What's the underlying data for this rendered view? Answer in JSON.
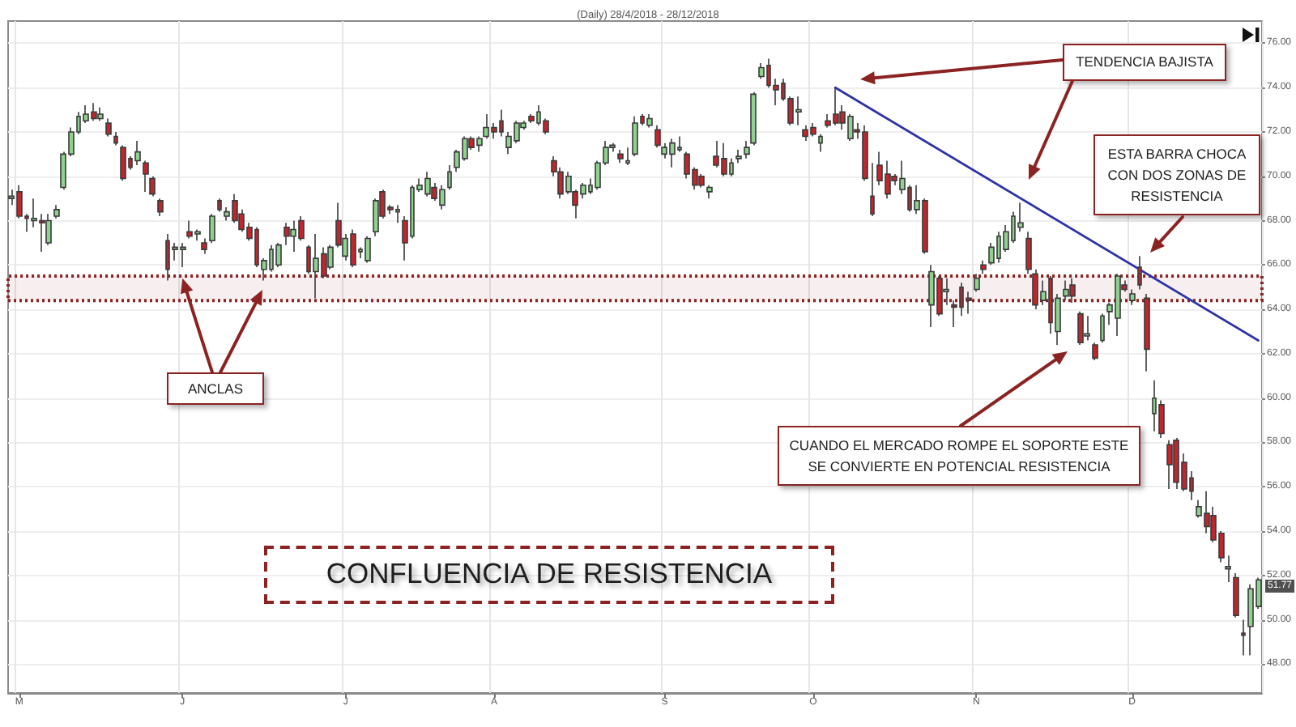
{
  "chart_data": {
    "type": "candlestick",
    "title": "(Daily) 28/4/2018 - 28/12/2018",
    "categories": [
      null,
      "M",
      null,
      null,
      null,
      null,
      null,
      null,
      null,
      null,
      null,
      null,
      null,
      null,
      null,
      null,
      null,
      null,
      null,
      null,
      null,
      null,
      null,
      "J",
      null,
      null,
      null,
      null,
      null,
      null,
      null,
      null,
      null,
      null,
      null,
      null,
      null,
      null,
      null,
      null,
      null,
      null,
      null,
      null,
      null,
      "J",
      null,
      null,
      null,
      null,
      null,
      null,
      null,
      null,
      null,
      null,
      null,
      null,
      null,
      null,
      null,
      null,
      null,
      null,
      null,
      "A",
      null,
      null,
      null,
      null,
      null,
      null,
      null,
      null,
      null,
      null,
      null,
      null,
      null,
      null,
      null,
      null,
      null,
      null,
      null,
      null,
      null,
      null,
      "S",
      null,
      null,
      null,
      null,
      null,
      null,
      null,
      null,
      null,
      null,
      null,
      null,
      null,
      null,
      null,
      null,
      null,
      null,
      null,
      "O",
      null,
      null,
      null,
      null,
      null,
      null,
      null,
      null,
      null,
      null,
      null,
      null,
      null,
      null,
      null,
      null,
      null,
      null,
      null,
      null,
      null,
      "N",
      null,
      null,
      null,
      null,
      null,
      null,
      null,
      null,
      null,
      null,
      null,
      null,
      null,
      null,
      null,
      null,
      null,
      null,
      null,
      null,
      "D",
      null,
      null,
      null,
      null,
      null,
      null,
      null,
      null,
      null,
      null,
      null,
      null,
      null,
      null,
      null,
      null,
      null
    ],
    "series": [
      {
        "type": "candlestick",
        "ohlc": [
          [
            69.0,
            69.4,
            68.7,
            69.1
          ],
          [
            69.3,
            69.6,
            68.1,
            68.2
          ],
          [
            68.2,
            68.3,
            67.5,
            68.1
          ],
          [
            68.0,
            69.0,
            67.7,
            68.1
          ],
          [
            68.0,
            68.3,
            66.6,
            67.9
          ],
          [
            67.0,
            68.3,
            66.9,
            68.0
          ],
          [
            68.2,
            68.7,
            68.1,
            68.5
          ],
          [
            69.5,
            71.1,
            69.4,
            71.0
          ],
          [
            71.0,
            72.2,
            70.9,
            72.0
          ],
          [
            72.0,
            72.9,
            71.9,
            72.7
          ],
          [
            72.5,
            73.2,
            72.4,
            72.8
          ],
          [
            72.9,
            73.3,
            72.5,
            72.6
          ],
          [
            72.6,
            73.1,
            72.5,
            72.8
          ],
          [
            72.4,
            72.6,
            71.8,
            71.9
          ],
          [
            71.8,
            72.0,
            71.4,
            71.5
          ],
          [
            71.3,
            71.4,
            69.8,
            69.9
          ],
          [
            70.8,
            70.9,
            70.3,
            70.4
          ],
          [
            70.7,
            71.6,
            70.5,
            71.1
          ],
          [
            70.6,
            70.7,
            69.3,
            70.1
          ],
          [
            69.9,
            70.0,
            69.1,
            69.2
          ],
          [
            68.9,
            69.0,
            68.2,
            68.4
          ],
          [
            67.1,
            67.4,
            65.3,
            65.8
          ],
          [
            66.7,
            67.0,
            66.2,
            66.8
          ],
          [
            66.7,
            67.0,
            65.9,
            66.8
          ],
          [
            67.5,
            68.0,
            67.2,
            67.3
          ],
          [
            67.4,
            67.6,
            67.1,
            67.5
          ],
          [
            67.0,
            67.2,
            66.5,
            66.7
          ],
          [
            67.1,
            68.3,
            67.0,
            68.2
          ],
          [
            68.9,
            69.0,
            68.4,
            68.5
          ],
          [
            68.2,
            68.6,
            68.0,
            68.4
          ],
          [
            68.9,
            69.2,
            67.9,
            68.0
          ],
          [
            68.3,
            68.5,
            67.5,
            67.6
          ],
          [
            67.7,
            67.9,
            67.1,
            67.2
          ],
          [
            67.6,
            67.7,
            65.9,
            66.0
          ],
          [
            65.8,
            66.3,
            65.3,
            66.2
          ],
          [
            65.8,
            66.9,
            65.7,
            66.7
          ],
          [
            66.0,
            67.0,
            65.9,
            66.9
          ],
          [
            67.7,
            67.9,
            66.9,
            67.3
          ],
          [
            67.3,
            68.0,
            66.6,
            67.6
          ],
          [
            68.0,
            68.2,
            67.1,
            67.2
          ],
          [
            66.8,
            66.9,
            65.6,
            65.7
          ],
          [
            65.7,
            67.4,
            64.5,
            66.3
          ],
          [
            66.5,
            66.8,
            65.4,
            65.5
          ],
          [
            65.9,
            66.9,
            65.8,
            66.8
          ],
          [
            68.0,
            68.8,
            66.8,
            66.9
          ],
          [
            66.4,
            67.4,
            66.2,
            67.2
          ],
          [
            67.4,
            67.6,
            65.9,
            66.0
          ],
          [
            66.6,
            66.8,
            66.3,
            66.7
          ],
          [
            66.2,
            67.3,
            66.1,
            67.2
          ],
          [
            67.5,
            69.0,
            67.3,
            68.9
          ],
          [
            69.3,
            69.4,
            68.1,
            68.2
          ],
          [
            68.6,
            68.7,
            68.3,
            68.5
          ],
          [
            68.4,
            68.7,
            67.9,
            68.5
          ],
          [
            68.0,
            68.2,
            66.2,
            67.0
          ],
          [
            67.3,
            69.6,
            67.2,
            69.5
          ],
          [
            69.4,
            69.9,
            69.3,
            69.6
          ],
          [
            69.2,
            70.2,
            69.1,
            69.9
          ],
          [
            69.5,
            69.7,
            68.9,
            69.0
          ],
          [
            68.7,
            69.6,
            68.5,
            69.4
          ],
          [
            69.5,
            70.5,
            69.4,
            70.2
          ],
          [
            70.4,
            71.2,
            70.2,
            71.1
          ],
          [
            70.8,
            71.8,
            70.7,
            71.7
          ],
          [
            71.7,
            71.8,
            71.2,
            71.3
          ],
          [
            71.4,
            71.8,
            71.1,
            71.7
          ],
          [
            71.8,
            72.8,
            71.7,
            72.2
          ],
          [
            72.2,
            72.4,
            71.7,
            72.0
          ],
          [
            72.5,
            73.0,
            71.8,
            72.0
          ],
          [
            71.3,
            72.0,
            71.0,
            71.8
          ],
          [
            71.6,
            72.5,
            71.5,
            72.4
          ],
          [
            72.2,
            72.5,
            72.1,
            72.4
          ],
          [
            72.7,
            72.8,
            72.4,
            72.5
          ],
          [
            72.4,
            73.2,
            72.3,
            72.9
          ],
          [
            72.5,
            72.6,
            71.9,
            72.0
          ],
          [
            70.7,
            70.9,
            70.0,
            70.2
          ],
          [
            70.2,
            70.4,
            69.0,
            69.2
          ],
          [
            69.3,
            70.2,
            69.2,
            70.0
          ],
          [
            69.3,
            69.4,
            68.1,
            68.7
          ],
          [
            69.2,
            69.7,
            69.0,
            69.6
          ],
          [
            69.3,
            69.9,
            69.2,
            69.6
          ],
          [
            69.5,
            70.7,
            69.4,
            70.6
          ],
          [
            70.6,
            71.6,
            70.5,
            71.3
          ],
          [
            71.3,
            71.5,
            71.1,
            71.4
          ],
          [
            71.0,
            71.2,
            70.6,
            70.8
          ],
          [
            70.6,
            71.3,
            70.5,
            70.7
          ],
          [
            71.0,
            72.7,
            70.9,
            72.4
          ],
          [
            72.7,
            72.8,
            72.3,
            72.4
          ],
          [
            72.3,
            72.8,
            72.2,
            72.6
          ],
          [
            72.1,
            72.3,
            71.3,
            71.4
          ],
          [
            71.0,
            71.5,
            70.8,
            71.3
          ],
          [
            71.0,
            71.7,
            70.4,
            71.5
          ],
          [
            71.2,
            71.8,
            71.1,
            71.3
          ],
          [
            71.0,
            71.1,
            69.9,
            70.1
          ],
          [
            70.3,
            70.4,
            69.4,
            69.6
          ],
          [
            70.0,
            70.1,
            69.5,
            69.6
          ],
          [
            69.3,
            69.6,
            69.0,
            69.5
          ],
          [
            70.9,
            71.6,
            70.4,
            70.5
          ],
          [
            70.8,
            71.5,
            70.0,
            70.1
          ],
          [
            70.1,
            70.8,
            70.0,
            70.6
          ],
          [
            70.8,
            71.2,
            70.6,
            70.9
          ],
          [
            71.0,
            71.6,
            70.8,
            71.3
          ],
          [
            71.5,
            73.8,
            71.4,
            73.7
          ],
          [
            74.5,
            75.1,
            74.4,
            74.9
          ],
          [
            75.0,
            75.3,
            74.0,
            74.1
          ],
          [
            74.1,
            74.4,
            73.2,
            73.9
          ],
          [
            74.2,
            74.4,
            73.4,
            73.5
          ],
          [
            73.5,
            73.6,
            72.3,
            72.4
          ],
          [
            72.9,
            73.6,
            72.3,
            73.0
          ],
          [
            72.1,
            72.3,
            71.6,
            71.8
          ],
          [
            72.2,
            72.4,
            71.8,
            71.9
          ],
          [
            71.5,
            71.9,
            71.1,
            71.8
          ],
          [
            72.5,
            72.8,
            72.2,
            72.3
          ],
          [
            72.8,
            74.0,
            72.3,
            72.4
          ],
          [
            72.9,
            73.2,
            72.1,
            72.4
          ],
          [
            71.7,
            72.8,
            71.6,
            72.7
          ],
          [
            72.1,
            72.4,
            71.7,
            72.0
          ],
          [
            72.0,
            72.3,
            69.8,
            69.9
          ],
          [
            69.1,
            70.6,
            68.2,
            68.3
          ],
          [
            70.5,
            71.1,
            69.6,
            69.8
          ],
          [
            70.1,
            70.7,
            69.0,
            69.2
          ],
          [
            70.0,
            70.1,
            69.6,
            69.8
          ],
          [
            69.4,
            70.7,
            69.2,
            69.9
          ],
          [
            69.5,
            69.6,
            68.4,
            68.5
          ],
          [
            68.5,
            69.6,
            68.3,
            68.9
          ],
          [
            68.9,
            69.0,
            66.5,
            66.6
          ],
          [
            64.2,
            66.0,
            63.2,
            65.7
          ],
          [
            65.4,
            65.5,
            63.7,
            63.8
          ],
          [
            64.8,
            65.4,
            64.2,
            64.9
          ],
          [
            64.2,
            64.4,
            63.2,
            64.1
          ],
          [
            65.0,
            65.2,
            63.7,
            64.1
          ],
          [
            64.5,
            64.8,
            63.8,
            64.4
          ],
          [
            64.9,
            65.6,
            64.8,
            65.4
          ],
          [
            66.0,
            66.2,
            65.6,
            65.8
          ],
          [
            66.1,
            67.0,
            66.0,
            66.8
          ],
          [
            66.3,
            67.5,
            66.1,
            67.3
          ],
          [
            66.7,
            67.8,
            66.6,
            67.5
          ],
          [
            67.1,
            68.4,
            67.0,
            68.2
          ],
          [
            67.7,
            68.8,
            67.5,
            67.9
          ],
          [
            67.2,
            67.5,
            65.6,
            65.8
          ],
          [
            65.6,
            65.8,
            64.0,
            64.2
          ],
          [
            64.4,
            65.3,
            64.2,
            64.8
          ],
          [
            65.4,
            65.5,
            62.9,
            63.4
          ],
          [
            63.0,
            64.7,
            62.4,
            64.5
          ],
          [
            64.6,
            65.3,
            64.4,
            64.9
          ],
          [
            65.1,
            65.4,
            64.3,
            64.6
          ],
          [
            63.8,
            63.9,
            62.4,
            62.5
          ],
          [
            62.8,
            63.7,
            62.6,
            62.9
          ],
          [
            62.4,
            62.5,
            61.7,
            61.8
          ],
          [
            62.6,
            63.8,
            62.5,
            63.7
          ],
          [
            63.9,
            64.3,
            63.3,
            64.2
          ],
          [
            63.6,
            65.6,
            62.8,
            65.5
          ],
          [
            65.1,
            65.3,
            64.8,
            64.9
          ],
          [
            64.4,
            64.9,
            64.2,
            64.7
          ],
          [
            65.9,
            66.4,
            64.9,
            65.1
          ],
          [
            64.5,
            64.7,
            61.2,
            62.2
          ],
          [
            59.3,
            60.8,
            58.5,
            60.0
          ],
          [
            59.7,
            59.9,
            58.2,
            58.4
          ],
          [
            57.9,
            58.1,
            55.9,
            57.0
          ],
          [
            58.1,
            58.2,
            55.9,
            56.2
          ],
          [
            57.1,
            57.5,
            55.8,
            55.9
          ],
          [
            56.4,
            56.7,
            55.4,
            55.8
          ],
          [
            54.7,
            55.4,
            54.6,
            55.1
          ],
          [
            54.8,
            55.8,
            53.9,
            54.2
          ],
          [
            54.7,
            55.1,
            53.5,
            53.6
          ],
          [
            53.9,
            54.0,
            52.6,
            52.8
          ],
          [
            52.3,
            52.9,
            51.7,
            52.4
          ],
          [
            51.9,
            52.1,
            50.1,
            50.2
          ],
          [
            49.4,
            50.0,
            48.4,
            49.3
          ],
          [
            49.7,
            51.6,
            48.4,
            51.4
          ],
          [
            50.6,
            51.9,
            50.5,
            51.8
          ]
        ],
        "colors": [
          "#8fd18f",
          "#c0262d",
          "#c0262d",
          "#8fd18f",
          "#c0262d",
          "#8fd18f",
          "#8fd18f",
          "#8fd18f",
          "#8fd18f",
          "#8fd18f",
          "#8fd18f",
          "#c0262d",
          "#8fd18f",
          "#c0262d",
          "#c0262d",
          "#c0262d",
          "#c0262d",
          "#8fd18f",
          "#c0262d",
          "#c0262d",
          "#c0262d",
          "#c0262d",
          "#8fd18f",
          "#8fd18f",
          "#c0262d",
          "#8fd18f",
          "#c0262d",
          "#8fd18f",
          "#c0262d",
          "#8fd18f",
          "#c0262d",
          "#c0262d",
          "#c0262d",
          "#c0262d",
          "#8fd18f",
          "#8fd18f",
          "#8fd18f",
          "#c0262d",
          "#8fd18f",
          "#c0262d",
          "#c0262d",
          "#8fd18f",
          "#c0262d",
          "#8fd18f",
          "#c0262d",
          "#8fd18f",
          "#c0262d",
          "#8fd18f",
          "#8fd18f",
          "#8fd18f",
          "#c0262d",
          "#c0262d",
          "#8fd18f",
          "#c0262d",
          "#8fd18f",
          "#8fd18f",
          "#8fd18f",
          "#c0262d",
          "#8fd18f",
          "#8fd18f",
          "#8fd18f",
          "#8fd18f",
          "#c0262d",
          "#8fd18f",
          "#8fd18f",
          "#c0262d",
          "#c0262d",
          "#8fd18f",
          "#8fd18f",
          "#8fd18f",
          "#c0262d",
          "#8fd18f",
          "#c0262d",
          "#c0262d",
          "#c0262d",
          "#8fd18f",
          "#c0262d",
          "#8fd18f",
          "#8fd18f",
          "#8fd18f",
          "#8fd18f",
          "#8fd18f",
          "#c0262d",
          "#8fd18f",
          "#8fd18f",
          "#c0262d",
          "#8fd18f",
          "#c0262d",
          "#8fd18f",
          "#8fd18f",
          "#8fd18f",
          "#c0262d",
          "#c0262d",
          "#c0262d",
          "#8fd18f",
          "#c0262d",
          "#c0262d",
          "#8fd18f",
          "#8fd18f",
          "#8fd18f",
          "#8fd18f",
          "#8fd18f",
          "#c0262d",
          "#c0262d",
          "#c0262d",
          "#c0262d",
          "#8fd18f",
          "#c0262d",
          "#c0262d",
          "#8fd18f",
          "#c0262d",
          "#c0262d",
          "#c0262d",
          "#8fd18f",
          "#c0262d",
          "#c0262d",
          "#c0262d",
          "#c0262d",
          "#c0262d",
          "#c0262d",
          "#8fd18f",
          "#c0262d",
          "#8fd18f",
          "#c0262d",
          "#8fd18f",
          "#c0262d",
          "#8fd18f",
          "#c0262d",
          "#c0262d",
          "#c0262d",
          "#8fd18f",
          "#c0262d",
          "#8fd18f",
          "#8fd18f",
          "#8fd18f",
          "#8fd18f",
          "#8fd18f",
          "#c0262d",
          "#c0262d",
          "#8fd18f",
          "#c0262d",
          "#8fd18f",
          "#8fd18f",
          "#c0262d",
          "#c0262d",
          "#8fd18f",
          "#c0262d",
          "#8fd18f",
          "#8fd18f",
          "#8fd18f",
          "#c0262d",
          "#8fd18f",
          "#c0262d",
          "#c0262d",
          "#8fd18f",
          "#c0262d",
          "#c0262d",
          "#c0262d",
          "#c0262d",
          "#c0262d",
          "#8fd18f",
          "#c0262d",
          "#c0262d",
          "#c0262d",
          "#8fd18f",
          "#c0262d",
          "#c0262d",
          "#8fd18f",
          "#8fd18f"
        ]
      },
      {
        "type": "line",
        "color": "#2e34a6",
        "values": [
          null,
          null,
          null,
          null,
          null,
          null,
          null,
          null,
          null,
          null,
          null,
          null,
          null,
          null,
          null,
          null,
          null,
          null,
          null,
          null,
          null,
          null,
          null,
          null,
          null,
          null,
          null,
          null,
          null,
          null,
          null,
          null,
          null,
          null,
          null,
          null,
          null,
          null,
          null,
          null,
          null,
          null,
          null,
          null,
          null,
          null,
          null,
          null,
          null,
          null,
          null,
          null,
          null,
          null,
          null,
          null,
          null,
          null,
          null,
          null,
          null,
          null,
          null,
          null,
          null,
          null,
          null,
          null,
          null,
          null,
          null,
          null,
          null,
          null,
          null,
          null,
          null,
          null,
          null,
          null,
          null,
          null,
          null,
          null,
          null,
          null,
          null,
          null,
          null,
          null,
          null,
          null,
          null,
          null,
          null,
          null,
          null,
          null,
          null,
          null,
          null,
          null,
          null,
          null,
          null,
          null,
          null,
          null,
          null,
          null,
          null,
          74.0,
          null,
          null,
          null,
          null,
          null,
          null,
          null,
          null,
          null,
          null,
          null,
          null,
          null,
          null,
          null,
          null,
          null,
          null,
          null,
          null,
          null,
          null,
          null,
          null,
          null,
          null,
          null,
          null,
          null,
          null,
          null,
          null,
          null,
          null,
          null,
          null,
          null,
          null,
          null,
          null,
          null,
          null,
          null,
          null,
          null,
          null,
          null,
          null,
          null,
          null,
          null,
          null,
          null,
          null,
          null,
          null,
          62.6
        ]
      }
    ],
    "ylim": [
      46.7,
      77.0
    ],
    "yticks": [
      {
        "value": 48,
        "label": "48.00"
      },
      {
        "value": 50,
        "label": "50.00"
      },
      {
        "value": 52,
        "label": "52.00"
      },
      {
        "value": 54,
        "label": "54.00"
      },
      {
        "value": 56,
        "label": "56.00"
      },
      {
        "value": 58,
        "label": "58.00"
      },
      {
        "value": 60,
        "label": "60.00"
      },
      {
        "value": 62,
        "label": "62.00"
      },
      {
        "value": 64,
        "label": "64.00"
      },
      {
        "value": 66,
        "label": "66.00"
      },
      {
        "value": 68,
        "label": "68.00"
      },
      {
        "value": 70,
        "label": "70.00"
      },
      {
        "value": 72,
        "label": "72.00"
      },
      {
        "value": 74,
        "label": "74.00"
      },
      {
        "value": 76,
        "label": "76.00"
      }
    ],
    "grid": true,
    "bands": [
      {
        "axis": "y",
        "from": 64.4,
        "to": 65.5,
        "color": "#8b2323"
      }
    ],
    "annotations": [
      "TENDENCIA BAJISTA",
      "ESTA BARRA CHOCA CON DOS ZONAS DE RESISTENCIA",
      "CUANDO EL MERCADO ROMPE EL SOPORTE ESTE SE CONVIERTE EN POTENCIAL RESISTENCIA",
      {
        "text": "ANCLAS",
        "x": "J",
        "y": 65.4
      },
      "CONFLUENCIA DE RESISTENCIA",
      "51.77"
    ]
  }
}
